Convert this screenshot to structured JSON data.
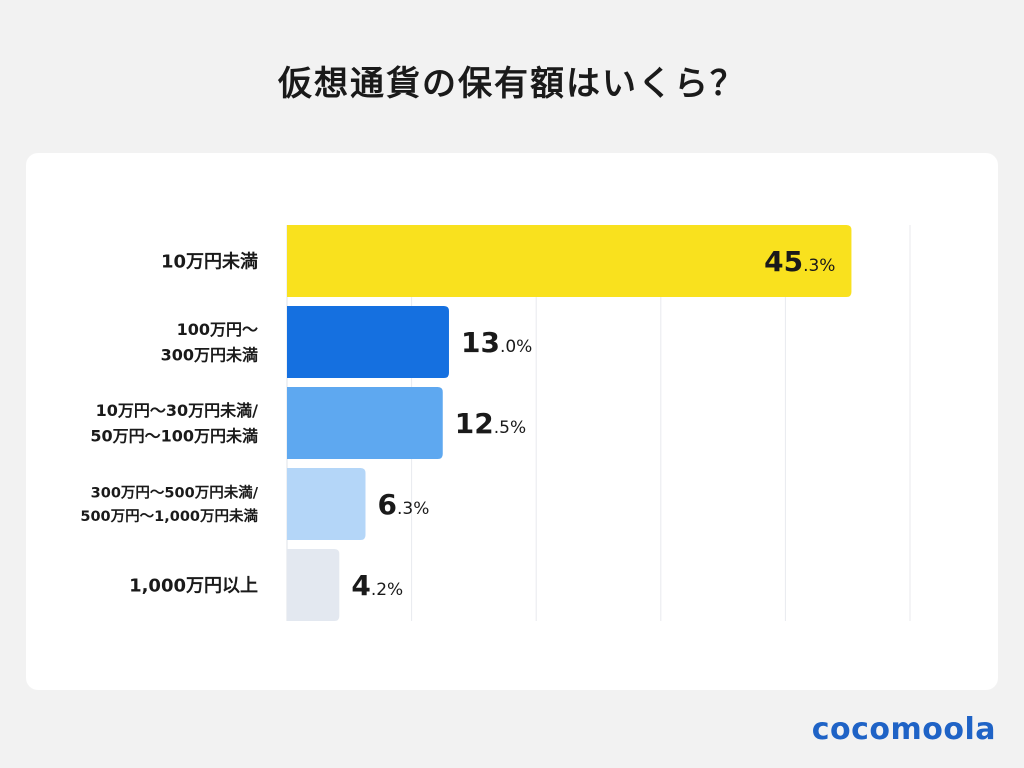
{
  "title": "仮想通貨の保有額はいくら？",
  "logo": "cocomoola",
  "chart_data": {
    "type": "bar",
    "orientation": "horizontal",
    "title": "仮想通貨の保有額はいくら？",
    "categories": [
      [
        "10万円未満"
      ],
      [
        "100万円〜",
        "300万円未満"
      ],
      [
        "10万円〜30万円未満/",
        "50万円〜100万円未満"
      ],
      [
        "300万円〜500万円未満/",
        "500万円〜1,000万円未満"
      ],
      [
        "1,000万円以上"
      ]
    ],
    "values": [
      45.3,
      13.0,
      12.5,
      6.3,
      4.2
    ],
    "value_labels": [
      [
        "45",
        ".3%"
      ],
      [
        "13",
        ".0%"
      ],
      [
        "12",
        ".5%"
      ],
      [
        "6",
        ".3%"
      ],
      [
        "4",
        ".2%"
      ]
    ],
    "colors": [
      "#f9e11e",
      "#1570e0",
      "#5ea8f0",
      "#b4d6f8",
      "#e3e8f0"
    ],
    "xlim": [
      0,
      50
    ],
    "grid": true,
    "unit": "%"
  }
}
